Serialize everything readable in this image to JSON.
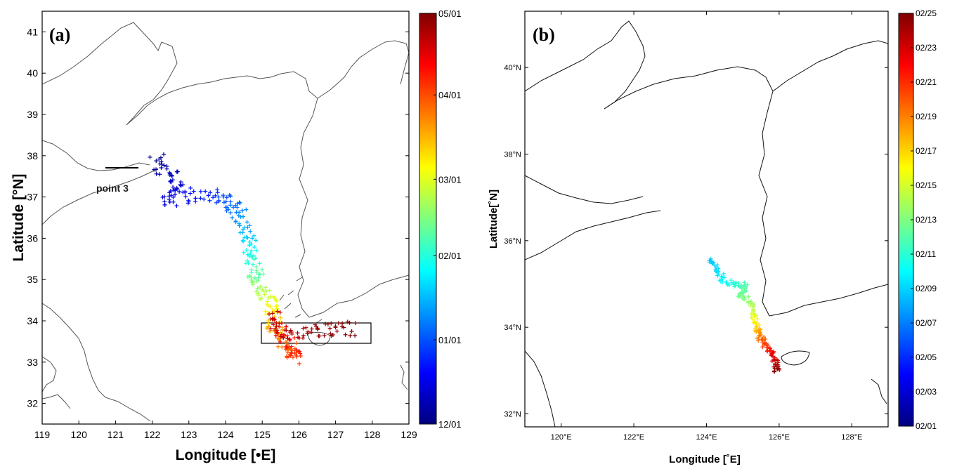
{
  "figure": {
    "panels": [
      {
        "id": "a",
        "label": "(a)",
        "x_axis_title": "Longitude [•E]",
        "y_axis_title": "Latitude [°N]",
        "lon_range": [
          119,
          129
        ],
        "lat_range": [
          31.5,
          41.5
        ],
        "x_ticks": [
          "119",
          "120",
          "121",
          "122",
          "123",
          "124",
          "125",
          "126",
          "127",
          "128",
          "129"
        ],
        "y_ticks": [
          "32",
          "33",
          "34",
          "35",
          "36",
          "37",
          "38",
          "39",
          "40",
          "41"
        ],
        "annotation": "point 3",
        "box_lon": [
          125,
          128
        ],
        "box_lat": [
          33.5,
          34
        ],
        "colorbar_labels": [
          "05/01",
          "04/01",
          "03/01",
          "02/01",
          "01/01",
          "12/01"
        ],
        "time_range": [
          0,
          151
        ]
      },
      {
        "id": "b",
        "label": "(b)",
        "x_axis_title": "Longitude [˚E]",
        "y_axis_title": "Latitude[˚N]",
        "lon_range": [
          119,
          129
        ],
        "lat_range": [
          31.7,
          41.3
        ],
        "x_ticks": [
          "120°E",
          "122°E",
          "124°E",
          "126°E",
          "128°E"
        ],
        "y_ticks": [
          "32°N",
          "34°N",
          "36°N",
          "38°N",
          "40°N"
        ],
        "colorbar_labels": [
          "02/25",
          "02/23",
          "02/21",
          "02/19",
          "02/17",
          "02/15",
          "02/13",
          "02/11",
          "02/09",
          "02/07",
          "02/05",
          "02/03",
          "02/01"
        ],
        "time_range": [
          0,
          24
        ]
      }
    ]
  },
  "map_data": {
    "track_a": [
      {
        "lon": 122.1,
        "lat": 37.95,
        "t": 2
      },
      {
        "lon": 122.4,
        "lat": 37.6,
        "t": 6
      },
      {
        "lon": 122.7,
        "lat": 37.4,
        "t": 10
      },
      {
        "lon": 122.4,
        "lat": 37.0,
        "t": 14
      },
      {
        "lon": 122.9,
        "lat": 36.95,
        "t": 18
      },
      {
        "lon": 123.5,
        "lat": 37.1,
        "t": 24
      },
      {
        "lon": 124.0,
        "lat": 36.95,
        "t": 30
      },
      {
        "lon": 124.3,
        "lat": 36.7,
        "t": 36
      },
      {
        "lon": 124.5,
        "lat": 36.4,
        "t": 42
      },
      {
        "lon": 124.65,
        "lat": 36.0,
        "t": 50
      },
      {
        "lon": 124.7,
        "lat": 35.6,
        "t": 58
      },
      {
        "lon": 124.75,
        "lat": 35.3,
        "t": 66
      },
      {
        "lon": 124.85,
        "lat": 35.0,
        "t": 74
      },
      {
        "lon": 125.0,
        "lat": 34.7,
        "t": 82
      },
      {
        "lon": 125.2,
        "lat": 34.45,
        "t": 90
      },
      {
        "lon": 125.3,
        "lat": 34.15,
        "t": 98
      },
      {
        "lon": 125.3,
        "lat": 33.85,
        "t": 106
      },
      {
        "lon": 125.5,
        "lat": 33.55,
        "t": 112
      },
      {
        "lon": 125.75,
        "lat": 33.3,
        "t": 118
      },
      {
        "lon": 125.9,
        "lat": 33.1,
        "t": 124
      },
      {
        "lon": 125.85,
        "lat": 33.4,
        "t": 130
      },
      {
        "lon": 125.5,
        "lat": 33.8,
        "t": 136
      },
      {
        "lon": 125.3,
        "lat": 34.05,
        "t": 140
      },
      {
        "lon": 125.8,
        "lat": 33.6,
        "t": 144
      },
      {
        "lon": 126.4,
        "lat": 33.75,
        "t": 147
      },
      {
        "lon": 127.0,
        "lat": 33.85,
        "t": 149
      },
      {
        "lon": 127.6,
        "lat": 33.8,
        "t": 151
      }
    ],
    "track_b": [
      {
        "lon": 124.1,
        "lat": 35.6,
        "t": 7.5
      },
      {
        "lon": 124.3,
        "lat": 35.3,
        "t": 8.2
      },
      {
        "lon": 124.5,
        "lat": 35.05,
        "t": 9
      },
      {
        "lon": 124.8,
        "lat": 35.0,
        "t": 10
      },
      {
        "lon": 125.1,
        "lat": 34.95,
        "t": 11
      },
      {
        "lon": 124.9,
        "lat": 34.75,
        "t": 11.5
      },
      {
        "lon": 125.2,
        "lat": 34.6,
        "t": 12.5
      },
      {
        "lon": 125.3,
        "lat": 34.3,
        "t": 14
      },
      {
        "lon": 125.4,
        "lat": 34.0,
        "t": 16
      },
      {
        "lon": 125.45,
        "lat": 33.8,
        "t": 18
      },
      {
        "lon": 125.6,
        "lat": 33.6,
        "t": 19.5
      },
      {
        "lon": 125.8,
        "lat": 33.4,
        "t": 21
      },
      {
        "lon": 125.9,
        "lat": 33.2,
        "t": 22.5
      },
      {
        "lon": 125.95,
        "lat": 32.95,
        "t": 24
      }
    ],
    "box_a": {
      "lon": [
        125,
        128
      ],
      "lat": [
        33.5,
        34
      ]
    },
    "point3_line": {
      "lon": [
        120.8,
        121.7
      ],
      "lat": 37.78
    }
  },
  "colors": {
    "jet": [
      "#00007f",
      "#0000ff",
      "#007fff",
      "#00ffff",
      "#7fff7f",
      "#ffff00",
      "#ff7f00",
      "#ff0000",
      "#7f0000"
    ],
    "coast": "#555555",
    "coast_b": "#111111",
    "frame": "#000000"
  }
}
